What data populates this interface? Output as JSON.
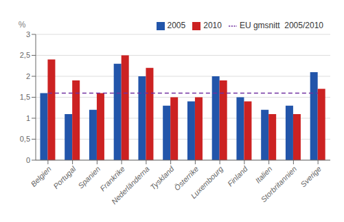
{
  "chart_data": {
    "type": "bar",
    "y_label": "%",
    "categories": [
      "Belgien",
      "Portugal",
      "Spanien",
      "Frankrike",
      "Nederländerna",
      "Tyskland",
      "Österrike",
      "Luxembourg",
      "Finland",
      "Italien",
      "Storbritannien",
      "Sverige"
    ],
    "series": [
      {
        "name": "2005",
        "color": "#2255aa",
        "values": [
          1.6,
          1.1,
          1.2,
          2.3,
          2.0,
          1.3,
          1.4,
          2.0,
          1.5,
          1.2,
          1.3,
          2.1
        ]
      },
      {
        "name": "2010",
        "color": "#cc2222",
        "values": [
          2.4,
          1.9,
          1.6,
          2.5,
          2.2,
          1.5,
          1.5,
          1.9,
          1.4,
          1.1,
          1.1,
          1.7
        ]
      },
      {
        "name": "EU gmsnitt  2005/2010",
        "type": "line",
        "line_style": "dashed",
        "color": "#7030a0",
        "values": [
          1.6,
          1.6,
          1.6,
          1.6,
          1.6,
          1.6,
          1.6,
          1.6,
          1.6,
          1.6,
          1.6,
          1.6
        ]
      }
    ],
    "ylim": [
      0,
      3
    ],
    "yticks": [
      0,
      {
        "value": 0.5,
        "label": "0,5"
      },
      1,
      {
        "value": 1.5,
        "label": "1,5"
      },
      2,
      {
        "value": 2.5,
        "label": "2,5"
      },
      3
    ],
    "grid": true,
    "legend": "upper right"
  }
}
